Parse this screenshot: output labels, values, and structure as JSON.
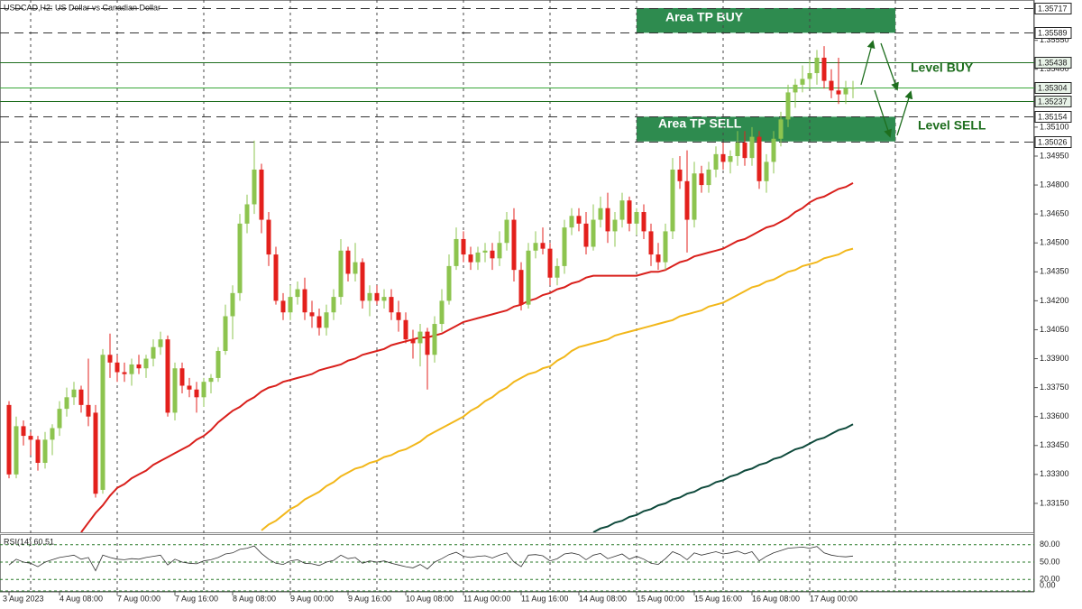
{
  "chart_data": {
    "type": "candlestick",
    "title": "USDCAD,H2:  US Dollar vs Canadian Dollar",
    "categories": [
      "3 Aug 2023",
      null,
      null,
      null,
      null,
      null,
      null,
      "4 Aug 08:00",
      null,
      null,
      null,
      null,
      null,
      null,
      null,
      "7 Aug 00:00",
      null,
      null,
      null,
      null,
      null,
      null,
      null,
      "7 Aug 16:00",
      null,
      null,
      null,
      null,
      null,
      null,
      null,
      "8 Aug 08:00",
      null,
      null,
      null,
      null,
      null,
      null,
      null,
      "9 Aug 00:00",
      null,
      null,
      null,
      null,
      null,
      null,
      null,
      "9 Aug 16:00",
      null,
      null,
      null,
      null,
      null,
      null,
      null,
      "10 Aug 08:00",
      null,
      null,
      null,
      null,
      null,
      null,
      null,
      "11 Aug 00:00",
      null,
      null,
      null,
      null,
      null,
      null,
      null,
      "11 Aug 16:00",
      null,
      null,
      null,
      null,
      null,
      null,
      null,
      "14 Aug 08:00",
      null,
      null,
      null,
      null,
      null,
      null,
      null,
      "15 Aug 00:00",
      null,
      null,
      null,
      null,
      null,
      null,
      null,
      "15 Aug 16:00",
      null,
      null,
      null,
      null,
      null,
      null,
      null,
      "16 Aug 08:00",
      null,
      null,
      null,
      null,
      null,
      null,
      null,
      "17 Aug 00:00",
      null,
      null,
      null,
      null,
      null,
      null
    ],
    "open": [
      1.3366,
      1.333,
      1.3355,
      1.335,
      1.3348,
      1.3336,
      1.3348,
      1.3354,
      1.3364,
      1.337,
      1.3374,
      1.3366,
      1.3362,
      1.3322,
      1.3392,
      1.3388,
      1.3383,
      1.3382,
      1.3387,
      1.3385,
      1.339,
      1.3396,
      1.34,
      1.3362,
      1.3385,
      1.3376,
      1.3374,
      1.337,
      1.3378,
      1.338,
      1.3394,
      1.3412,
      1.3424,
      1.346,
      1.347,
      1.3488,
      1.3462,
      1.3444,
      1.342,
      1.3414,
      1.3422,
      1.3426,
      1.3414,
      1.3412,
      1.3406,
      1.3414,
      1.3422,
      1.3446,
      1.3434,
      1.344,
      1.342,
      1.3424,
      1.342,
      1.3422,
      1.3414,
      1.341,
      1.34,
      1.3398,
      1.3404,
      1.3392,
      1.3408,
      1.342,
      1.3438,
      1.3452,
      1.3444,
      1.344,
      1.3445,
      1.3446,
      1.3442,
      1.345,
      1.3462,
      1.3436,
      1.3418,
      1.3446,
      1.345,
      1.3447,
      1.3432,
      1.3438,
      1.3458,
      1.3464,
      1.346,
      1.3448,
      1.3462,
      1.3468,
      1.3456,
      1.3462,
      1.3472,
      1.346,
      1.3466,
      1.3456,
      1.3444,
      1.344,
      1.3456,
      1.3488,
      1.3482,
      1.3462,
      1.3486,
      1.348,
      1.3488,
      1.3496,
      1.3492,
      1.3495,
      1.3502,
      1.3494,
      1.3505,
      1.3482,
      1.3492,
      1.3504,
      1.3514,
      1.3528,
      1.3532,
      1.3535,
      1.3538,
      1.3546,
      1.3534,
      1.3529,
      1.3527,
      1.353
    ],
    "high": [
      1.3368,
      1.336,
      1.3358,
      1.3352,
      1.335,
      1.3352,
      1.3356,
      1.3368,
      1.3375,
      1.3378,
      1.3376,
      1.339,
      1.3366,
      1.3395,
      1.3403,
      1.3392,
      1.3388,
      1.339,
      1.3392,
      1.3392,
      1.34,
      1.3404,
      1.3402,
      1.3388,
      1.3388,
      1.338,
      1.3378,
      1.338,
      1.3382,
      1.3396,
      1.3418,
      1.3428,
      1.3465,
      1.3475,
      1.3503,
      1.3491,
      1.3466,
      1.3448,
      1.3424,
      1.3428,
      1.343,
      1.3432,
      1.342,
      1.3416,
      1.3418,
      1.3426,
      1.3452,
      1.3448,
      1.345,
      1.3442,
      1.3428,
      1.3428,
      1.3426,
      1.3426,
      1.342,
      1.3414,
      1.3405,
      1.3408,
      1.3406,
      1.3412,
      1.3426,
      1.3444,
      1.3458,
      1.3456,
      1.3448,
      1.3448,
      1.345,
      1.345,
      1.3456,
      1.3466,
      1.3468,
      1.344,
      1.345,
      1.3456,
      1.3458,
      1.345,
      1.3442,
      1.3462,
      1.3468,
      1.3468,
      1.3466,
      1.347,
      1.3474,
      1.3476,
      1.3466,
      1.3476,
      1.3474,
      1.3468,
      1.347,
      1.346,
      1.345,
      1.346,
      1.3494,
      1.3495,
      1.3498,
      1.3492,
      1.349,
      1.3492,
      1.35,
      1.3502,
      1.3498,
      1.3508,
      1.3508,
      1.351,
      1.3508,
      1.3496,
      1.3508,
      1.3518,
      1.3532,
      1.3535,
      1.3542,
      1.3545,
      1.355,
      1.3552,
      1.354,
      1.3546,
      1.3534,
      1.3534
    ],
    "low": [
      1.3328,
      1.3328,
      1.3345,
      1.334,
      1.3332,
      1.3333,
      1.334,
      1.335,
      1.336,
      1.3366,
      1.3362,
      1.3355,
      1.3318,
      1.332,
      1.338,
      1.3378,
      1.3378,
      1.3376,
      1.3382,
      1.338,
      1.3386,
      1.3392,
      1.336,
      1.3358,
      1.3372,
      1.337,
      1.3362,
      1.3365,
      1.3372,
      1.3378,
      1.3392,
      1.34,
      1.342,
      1.3455,
      1.3465,
      1.3455,
      1.3438,
      1.3418,
      1.341,
      1.341,
      1.3418,
      1.341,
      1.3406,
      1.3402,
      1.3402,
      1.341,
      1.3418,
      1.343,
      1.343,
      1.3416,
      1.3412,
      1.3418,
      1.3416,
      1.341,
      1.3404,
      1.3398,
      1.339,
      1.3386,
      1.3374,
      1.3388,
      1.3404,
      1.3418,
      1.3436,
      1.344,
      1.3436,
      1.3436,
      1.344,
      1.3436,
      1.3438,
      1.3446,
      1.343,
      1.3415,
      1.3416,
      1.3442,
      1.3444,
      1.3428,
      1.3428,
      1.3434,
      1.3454,
      1.3456,
      1.3444,
      1.3446,
      1.3458,
      1.345,
      1.3448,
      1.3458,
      1.3456,
      1.3454,
      1.3452,
      1.3438,
      1.3436,
      1.3436,
      1.3452,
      1.3478,
      1.3445,
      1.3458,
      1.3476,
      1.3476,
      1.3484,
      1.3488,
      1.3486,
      1.349,
      1.349,
      1.349,
      1.3478,
      1.3476,
      1.3486,
      1.35,
      1.351,
      1.352,
      1.3528,
      1.353,
      1.3532,
      1.353,
      1.3525,
      1.3522,
      1.3522,
      1.3525
    ],
    "close": [
      1.333,
      1.3355,
      1.335,
      1.3348,
      1.3336,
      1.3348,
      1.3354,
      1.3364,
      1.337,
      1.3374,
      1.3366,
      1.336,
      1.332,
      1.3392,
      1.3388,
      1.3383,
      1.3382,
      1.3387,
      1.3385,
      1.339,
      1.3396,
      1.34,
      1.3362,
      1.3385,
      1.3376,
      1.3374,
      1.337,
      1.3378,
      1.338,
      1.3394,
      1.3412,
      1.3424,
      1.346,
      1.347,
      1.3488,
      1.3462,
      1.3444,
      1.342,
      1.3414,
      1.3422,
      1.3426,
      1.3414,
      1.3412,
      1.3406,
      1.3414,
      1.3422,
      1.3446,
      1.3434,
      1.344,
      1.342,
      1.3424,
      1.342,
      1.3422,
      1.3414,
      1.341,
      1.34,
      1.3398,
      1.3404,
      1.3392,
      1.3408,
      1.342,
      1.3438,
      1.3452,
      1.3444,
      1.344,
      1.3445,
      1.3446,
      1.3442,
      1.345,
      1.3462,
      1.3436,
      1.3418,
      1.3446,
      1.345,
      1.3447,
      1.3432,
      1.3438,
      1.3458,
      1.3464,
      1.346,
      1.3448,
      1.3462,
      1.3468,
      1.3456,
      1.3462,
      1.3472,
      1.346,
      1.3466,
      1.3456,
      1.3444,
      1.344,
      1.3456,
      1.3488,
      1.3482,
      1.3462,
      1.3486,
      1.348,
      1.3488,
      1.3496,
      1.3492,
      1.3495,
      1.3502,
      1.3494,
      1.3505,
      1.3482,
      1.3492,
      1.3504,
      1.3514,
      1.3528,
      1.3532,
      1.3535,
      1.3538,
      1.3546,
      1.3534,
      1.3529,
      1.3527,
      1.353,
      1.35304
    ],
    "up_color": "#8dc44f",
    "down_color": "#e3201c",
    "series": [
      {
        "color": "#d9201c",
        "values": [
          null,
          null,
          null,
          null,
          null,
          null,
          null,
          null,
          null,
          null,
          1.33,
          1.3305,
          1.331,
          1.3314,
          1.3319,
          1.3323,
          1.3325,
          1.3328,
          1.333,
          1.3332,
          1.3335,
          1.3337,
          1.3339,
          1.3341,
          1.3343,
          1.3345,
          1.3348,
          1.335,
          1.3353,
          1.3357,
          1.336,
          1.3363,
          1.3365,
          1.3368,
          1.337,
          1.3373,
          1.3375,
          1.3376,
          1.3378,
          1.3379,
          1.338,
          1.3381,
          1.3382,
          1.3384,
          1.3385,
          1.3386,
          1.3387,
          1.3389,
          1.339,
          1.3392,
          1.3393,
          1.3394,
          1.3395,
          1.3397,
          1.3398,
          1.3399,
          1.34,
          1.3401,
          1.3401,
          1.3402,
          1.3403,
          1.3405,
          1.3407,
          1.3409,
          1.341,
          1.3411,
          1.3412,
          1.3413,
          1.3414,
          1.3415,
          1.3417,
          1.3418,
          1.342,
          1.3421,
          1.3423,
          1.3424,
          1.3426,
          1.3427,
          1.3429,
          1.343,
          1.3432,
          1.3433,
          1.3433,
          1.3433,
          1.3433,
          1.3433,
          1.3433,
          1.3433,
          1.3434,
          1.3435,
          1.3435,
          1.3436,
          1.3438,
          1.344,
          1.3441,
          1.3443,
          1.3444,
          1.3445,
          1.3446,
          1.3447,
          1.3449,
          1.3451,
          1.3452,
          1.3454,
          1.3456,
          1.3458,
          1.3459,
          1.3461,
          1.3463,
          1.3466,
          1.3468,
          1.3471,
          1.3473,
          1.3474,
          1.3476,
          1.3478,
          1.3479,
          1.3481
        ]
      },
      {
        "color": "#f2b71a",
        "values": [
          null,
          null,
          null,
          null,
          null,
          null,
          null,
          null,
          null,
          null,
          null,
          null,
          null,
          null,
          null,
          null,
          null,
          null,
          null,
          null,
          null,
          null,
          null,
          null,
          null,
          null,
          null,
          null,
          null,
          null,
          null,
          null,
          null,
          null,
          null,
          1.3301,
          1.3304,
          1.3306,
          1.3309,
          1.3312,
          1.3314,
          1.3317,
          1.3319,
          1.3321,
          1.3324,
          1.3326,
          1.3329,
          1.3331,
          1.3333,
          1.3334,
          1.3336,
          1.3337,
          1.3339,
          1.334,
          1.3342,
          1.3343,
          1.3345,
          1.3347,
          1.335,
          1.3352,
          1.3354,
          1.3356,
          1.3358,
          1.336,
          1.3363,
          1.3365,
          1.3368,
          1.337,
          1.3373,
          1.3375,
          1.3378,
          1.338,
          1.3382,
          1.3383,
          1.3385,
          1.3386,
          1.3389,
          1.3391,
          1.3394,
          1.3396,
          1.3397,
          1.3398,
          1.3399,
          1.34,
          1.3402,
          1.3403,
          1.3404,
          1.3405,
          1.3406,
          1.3407,
          1.3408,
          1.3409,
          1.341,
          1.3412,
          1.3413,
          1.3414,
          1.3415,
          1.3417,
          1.3418,
          1.3419,
          1.3421,
          1.3423,
          1.3425,
          1.3427,
          1.3428,
          1.343,
          1.3431,
          1.3433,
          1.3435,
          1.3436,
          1.3438,
          1.3439,
          1.344,
          1.3442,
          1.3443,
          1.3444,
          1.3446,
          1.3447
        ]
      },
      {
        "color": "#0f4a3c",
        "values": [
          null,
          null,
          null,
          null,
          null,
          null,
          null,
          null,
          null,
          null,
          null,
          null,
          null,
          null,
          null,
          null,
          null,
          null,
          null,
          null,
          null,
          null,
          null,
          null,
          null,
          null,
          null,
          null,
          null,
          null,
          null,
          null,
          null,
          null,
          null,
          null,
          null,
          null,
          null,
          null,
          null,
          null,
          null,
          null,
          null,
          null,
          null,
          null,
          null,
          null,
          null,
          null,
          null,
          null,
          null,
          null,
          null,
          null,
          null,
          null,
          null,
          null,
          null,
          null,
          null,
          null,
          null,
          null,
          null,
          null,
          null,
          null,
          null,
          null,
          null,
          null,
          null,
          null,
          null,
          null,
          null,
          1.33,
          1.3302,
          1.3303,
          1.3305,
          1.3306,
          1.3308,
          1.3309,
          1.3311,
          1.3312,
          1.3314,
          1.3315,
          1.3317,
          1.3318,
          1.332,
          1.3321,
          1.3323,
          1.3324,
          1.3326,
          1.3327,
          1.3329,
          1.333,
          1.3332,
          1.3333,
          1.3335,
          1.3336,
          1.3338,
          1.3339,
          1.3341,
          1.3343,
          1.3344,
          1.3346,
          1.3348,
          1.3349,
          1.3351,
          1.3353,
          1.3354,
          1.3356
        ]
      }
    ],
    "ylim": [
      1.33,
      1.35759
    ],
    "yticks": [
      {
        "value": 1.3315,
        "label": "1.33150"
      },
      {
        "value": 1.333,
        "label": "1.33300"
      },
      {
        "value": 1.3345,
        "label": "1.33450"
      },
      {
        "value": 1.336,
        "label": "1.33600"
      },
      {
        "value": 1.3375,
        "label": "1.33750"
      },
      {
        "value": 1.339,
        "label": "1.33900"
      },
      {
        "value": 1.3405,
        "label": "1.34050"
      },
      {
        "value": 1.342,
        "label": "1.34200"
      },
      {
        "value": 1.3435,
        "label": "1.34350"
      },
      {
        "value": 1.345,
        "label": "1.34500"
      },
      {
        "value": 1.3465,
        "label": "1.34650"
      },
      {
        "value": 1.348,
        "label": "1.34800"
      },
      {
        "value": 1.3495,
        "label": "1.34950"
      },
      {
        "value": 1.351,
        "label": "1.35100"
      },
      {
        "value": 1.354,
        "label": "1.35400"
      },
      {
        "value": 1.3555,
        "label": "1.35550"
      }
    ],
    "levels": [
      {
        "value": 1.35717,
        "color": "#333333",
        "dashed": true
      },
      {
        "value": 1.35589,
        "color": "#333333",
        "dashed": true
      },
      {
        "value": 1.35438,
        "color": "#1f6e1f",
        "dashed": false
      },
      {
        "value": 1.35304,
        "color": "#3aa83a",
        "dashed": false
      },
      {
        "value": 1.35237,
        "color": "#1f6e1f",
        "dashed": false
      },
      {
        "value": 1.35154,
        "color": "#333333",
        "dashed": true
      },
      {
        "value": 1.35026,
        "color": "#333333",
        "dashed": true
      }
    ],
    "zones": [
      {
        "label": "Area TP BUY",
        "range": [
          1.35589,
          1.35717
        ],
        "color": "#2e8b4f"
      },
      {
        "label": "Area TP SELL",
        "range": [
          1.35026,
          1.35154
        ],
        "color": "#2e8b4f"
      }
    ],
    "annotations": [
      "Level BUY",
      "Level SELL"
    ],
    "indicator": {
      "label": "RSI(14) 60.51",
      "color": "#333333",
      "values": [
        45,
        55,
        50,
        48,
        42,
        50,
        54,
        58,
        60,
        62,
        55,
        58,
        35,
        62,
        58,
        55,
        54,
        56,
        55,
        58,
        60,
        62,
        45,
        55,
        50,
        48,
        47,
        52,
        54,
        58,
        64,
        66,
        72,
        74,
        78,
        65,
        55,
        48,
        46,
        52,
        54,
        48,
        47,
        44,
        50,
        53,
        62,
        56,
        58,
        48,
        52,
        50,
        52,
        48,
        45,
        42,
        40,
        46,
        38,
        50,
        56,
        63,
        67,
        60,
        58,
        60,
        61,
        57,
        62,
        66,
        50,
        42,
        62,
        63,
        61,
        52,
        56,
        64,
        66,
        63,
        54,
        62,
        65,
        56,
        60,
        64,
        55,
        60,
        55,
        48,
        46,
        56,
        68,
        63,
        54,
        66,
        62,
        65,
        68,
        64,
        66,
        69,
        64,
        68,
        52,
        60,
        66,
        70,
        74,
        75,
        76,
        74,
        77,
        66,
        62,
        60,
        59,
        60.51
      ],
      "ylim": [
        0,
        100
      ],
      "yticks": [
        {
          "value": 80,
          "label": "80.00"
        },
        {
          "value": 50,
          "label": "50.00"
        },
        {
          "value": 20,
          "label": "20.00"
        },
        {
          "value": 0,
          "label": "0.00"
        }
      ]
    }
  }
}
